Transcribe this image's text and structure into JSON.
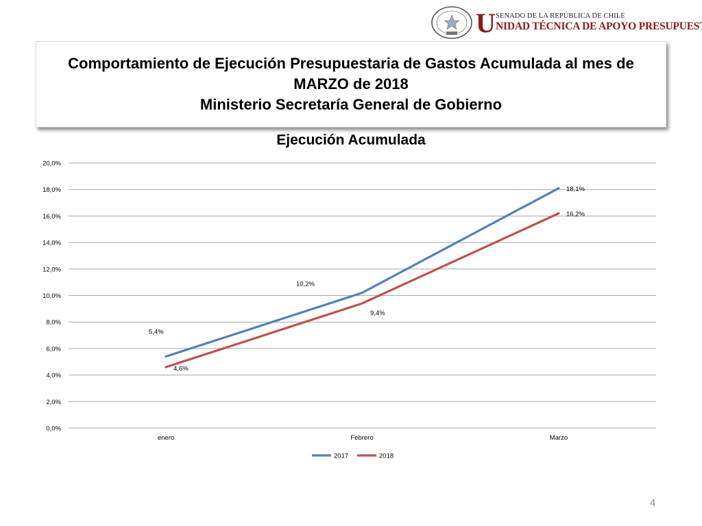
{
  "header": {
    "seal_text": "REPÚBLICA DE CHILE · SENADO",
    "brand_initial": "U",
    "brand_top": "SENADO DE LA REPÚBLICA DE CHILE",
    "brand_main": "NIDAD TÉCNICA DE APOYO PRESUPUESTARIO"
  },
  "title": {
    "line1": "Comportamiento de Ejecución Presupuestaria de Gastos Acumulada al mes de",
    "line2": "MARZO de 2018",
    "line3": "Ministerio Secretaría General de Gobierno"
  },
  "page_number": "4",
  "chart_data": {
    "type": "line",
    "title": "Ejecución Acumulada",
    "categories": [
      "enero",
      "Febrero",
      "Marzo"
    ],
    "series": [
      {
        "name": "2017",
        "values": [
          5.4,
          10.2,
          18.1
        ],
        "labels": [
          "5,4%",
          "10,2%",
          "18,1%"
        ],
        "color": "#4f81bd"
      },
      {
        "name": "2018",
        "values": [
          4.6,
          9.4,
          16.2
        ],
        "labels": [
          "4,6%",
          "9,4%",
          "16,2%"
        ],
        "color": "#c0504d"
      }
    ],
    "ylim": [
      0,
      20
    ],
    "yticks": [
      "0,0%",
      "2,0%",
      "4,0%",
      "6,0%",
      "8,0%",
      "10,0%",
      "12,0%",
      "14,0%",
      "16,0%",
      "18,0%",
      "20,0%"
    ],
    "grid": true,
    "legend": "bottom-center",
    "gridline_color": "#a6a6a6"
  }
}
